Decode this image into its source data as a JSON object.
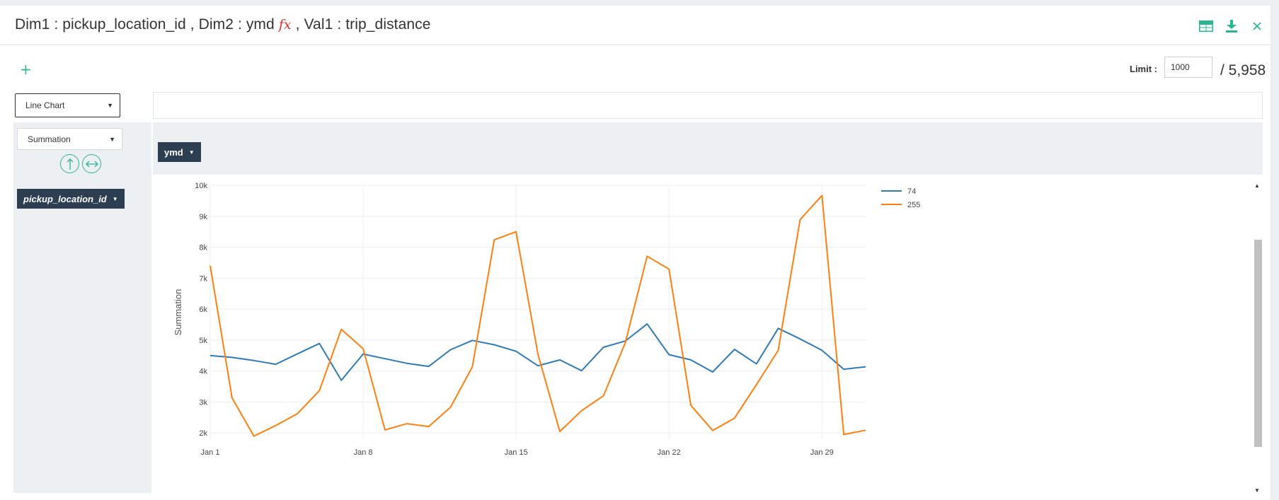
{
  "header": {
    "dim1_label": "Dim1 : ",
    "dim1_value": "pickup_location_id",
    "dim2_label": " , Dim2 : ",
    "dim2_value": "ymd ",
    "fx_symbol": "fx",
    "val1_label": " , Val1 : ",
    "val1_value": "trip_distance",
    "icons": [
      "table-icon",
      "download-icon",
      "close-icon"
    ]
  },
  "toolbar": {
    "add_label": "+",
    "limit_label": "Limit :",
    "limit_value": "1000",
    "total_count": "/ 5,958"
  },
  "controls": {
    "chart_type": "Line Chart",
    "aggregation": "Summation",
    "row_field": "pickup_location_id",
    "column_field": "ymd"
  },
  "colors": {
    "accent": "#2bb595",
    "pill_bg": "#2c3e50",
    "series_74": "#2f7bb6",
    "series_255": "#ff7f0e"
  },
  "chart_data": {
    "type": "line",
    "ylabel": "Summation",
    "ylim": [
      1800,
      10000
    ],
    "y_ticks": [
      2000,
      3000,
      4000,
      5000,
      6000,
      7000,
      8000,
      9000,
      10000
    ],
    "y_tick_labels": [
      "2k",
      "3k",
      "4k",
      "5k",
      "6k",
      "7k",
      "8k",
      "9k",
      "10k"
    ],
    "x_tick_labels": [
      "Jan 1",
      "Jan 8",
      "Jan 15",
      "Jan 22",
      "Jan 29"
    ],
    "x_tick_days": [
      1,
      8,
      15,
      22,
      29
    ],
    "xlim": [
      1,
      31
    ],
    "legend_position": "top-right",
    "series": [
      {
        "name": "74",
        "color": "#2f7bb6",
        "x": [
          1,
          2,
          3,
          4,
          5,
          6,
          7,
          8,
          9,
          10,
          11,
          12,
          13,
          14,
          15,
          16,
          17,
          18,
          19,
          20,
          21,
          22,
          23,
          24,
          25,
          26,
          27,
          28,
          29,
          30,
          31
        ],
        "values": [
          4500,
          4440,
          4340,
          4220,
          4560,
          4890,
          3700,
          4550,
          4400,
          4250,
          4150,
          4690,
          4990,
          4850,
          4640,
          4170,
          4360,
          4010,
          4770,
          4970,
          5520,
          4530,
          4360,
          3970,
          4700,
          4230,
          5380,
          5040,
          4670,
          4060,
          4140
        ]
      },
      {
        "name": "255",
        "color": "#ff7f0e",
        "x": [
          1,
          2,
          3,
          4,
          5,
          6,
          7,
          8,
          9,
          10,
          11,
          12,
          13,
          14,
          15,
          16,
          17,
          18,
          19,
          20,
          21,
          22,
          23,
          24,
          25,
          26,
          27,
          28,
          29,
          30,
          31
        ],
        "values": [
          7400,
          3130,
          1900,
          2240,
          2630,
          3370,
          5350,
          4720,
          2100,
          2300,
          2210,
          2830,
          4140,
          8240,
          8500,
          4550,
          2050,
          2720,
          3200,
          4920,
          7710,
          7290,
          2890,
          2080,
          2480,
          3560,
          4670,
          8890,
          9670,
          1950,
          2090
        ]
      }
    ]
  }
}
